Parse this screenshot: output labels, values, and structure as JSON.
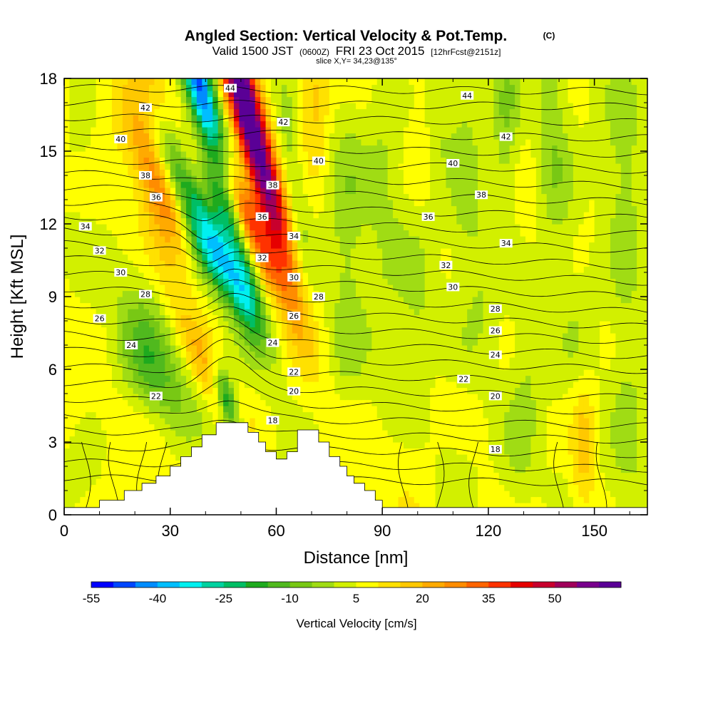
{
  "title": {
    "main": "Angled Section: Vertical Velocity & Pot.Temp.",
    "main_suffix": "(C)",
    "valid_prefix": "Valid 1500 JST",
    "valid_utc": "(0600Z)",
    "valid_date": "FRI 23 Oct 2015",
    "forecast": "[12hrFcst@2151z]",
    "slice": "slice X,Y= 34,23@135°"
  },
  "chart_data": {
    "type": "heatmap",
    "xlabel": "Distance [nm]",
    "ylabel": "Height [Kft MSL]",
    "xlim": [
      0,
      165
    ],
    "ylim": [
      0,
      18
    ],
    "x_ticks": [
      "0",
      "30",
      "60",
      "90",
      "120",
      "150"
    ],
    "x_tick_values": [
      0,
      30,
      60,
      90,
      120,
      150
    ],
    "y_ticks": [
      "0",
      "3",
      "6",
      "9",
      "12",
      "15",
      "18"
    ],
    "y_tick_values": [
      0,
      3,
      6,
      9,
      12,
      15,
      18
    ],
    "colorbar": {
      "title": "Vertical Velocity [cm/s]",
      "labels": [
        "-55",
        "-40",
        "-25",
        "-10",
        "5",
        "20",
        "35",
        "50"
      ],
      "min": -55,
      "max": 65,
      "step": 5,
      "colors": [
        "#0000ff",
        "#0046ff",
        "#008cff",
        "#00beff",
        "#00f0f0",
        "#00d2a0",
        "#00be64",
        "#1eaa1e",
        "#50b91e",
        "#78c814",
        "#a0dc14",
        "#d2f000",
        "#ffff00",
        "#ffe100",
        "#ffc800",
        "#ffaa00",
        "#ff8c00",
        "#ff6400",
        "#ff3200",
        "#e60000",
        "#c8002d",
        "#a0005a",
        "#78008c",
        "#5a0096"
      ]
    },
    "terrain_profile": [
      [
        0,
        0.3
      ],
      [
        10,
        0.3
      ],
      [
        10,
        0.6
      ],
      [
        17,
        0.6
      ],
      [
        17,
        1.0
      ],
      [
        22,
        1.0
      ],
      [
        22,
        1.3
      ],
      [
        26,
        1.3
      ],
      [
        26,
        1.6
      ],
      [
        30,
        1.6
      ],
      [
        30,
        2.0
      ],
      [
        33,
        2.0
      ],
      [
        33,
        2.4
      ],
      [
        36,
        2.4
      ],
      [
        36,
        2.8
      ],
      [
        39,
        2.8
      ],
      [
        39,
        3.3
      ],
      [
        43,
        3.3
      ],
      [
        43,
        3.8
      ],
      [
        52,
        3.8
      ],
      [
        52,
        3.4
      ],
      [
        55,
        3.4
      ],
      [
        55,
        3.0
      ],
      [
        57,
        3.0
      ],
      [
        57,
        2.6
      ],
      [
        60,
        2.6
      ],
      [
        60,
        2.3
      ],
      [
        63,
        2.3
      ],
      [
        63,
        2.6
      ],
      [
        66,
        2.6
      ],
      [
        66,
        3.5
      ],
      [
        72,
        3.5
      ],
      [
        72,
        3.0
      ],
      [
        75,
        3.0
      ],
      [
        75,
        2.4
      ],
      [
        78,
        2.4
      ],
      [
        78,
        2.0
      ],
      [
        80,
        2.0
      ],
      [
        80,
        1.6
      ],
      [
        82,
        1.6
      ],
      [
        82,
        1.3
      ],
      [
        85,
        1.3
      ],
      [
        85,
        1.0
      ],
      [
        88,
        1.0
      ],
      [
        88,
        0.6
      ],
      [
        90,
        0.6
      ],
      [
        90,
        0.3
      ],
      [
        165,
        0.3
      ]
    ],
    "isentropes": [
      {
        "theta": 18,
        "label_x": 59,
        "label_y": 3.9
      },
      {
        "theta": 18,
        "label_x": 122,
        "label_y": 2.7
      },
      {
        "theta": 20,
        "label_x": 65,
        "label_y": 5.1
      },
      {
        "theta": 20,
        "label_x": 122,
        "label_y": 4.9
      },
      {
        "theta": 22,
        "label_x": 26,
        "label_y": 4.9
      },
      {
        "theta": 22,
        "label_x": 65,
        "label_y": 5.9
      },
      {
        "theta": 22,
        "label_x": 113,
        "label_y": 5.6
      },
      {
        "theta": 24,
        "label_x": 19,
        "label_y": 7.0
      },
      {
        "theta": 24,
        "label_x": 59,
        "label_y": 7.1
      },
      {
        "theta": 24,
        "label_x": 122,
        "label_y": 6.6
      },
      {
        "theta": 26,
        "label_x": 10,
        "label_y": 8.1
      },
      {
        "theta": 26,
        "label_x": 65,
        "label_y": 8.2
      },
      {
        "theta": 26,
        "label_x": 122,
        "label_y": 7.6
      },
      {
        "theta": 28,
        "label_x": 23,
        "label_y": 9.1
      },
      {
        "theta": 28,
        "label_x": 72,
        "label_y": 9.0
      },
      {
        "theta": 28,
        "label_x": 122,
        "label_y": 8.5
      },
      {
        "theta": 30,
        "label_x": 16,
        "label_y": 10.0
      },
      {
        "theta": 30,
        "label_x": 65,
        "label_y": 9.8
      },
      {
        "theta": 30,
        "label_x": 110,
        "label_y": 9.4
      },
      {
        "theta": 32,
        "label_x": 10,
        "label_y": 10.9
      },
      {
        "theta": 32,
        "label_x": 56,
        "label_y": 10.6
      },
      {
        "theta": 32,
        "label_x": 108,
        "label_y": 10.3
      },
      {
        "theta": 34,
        "label_x": 6,
        "label_y": 11.9
      },
      {
        "theta": 34,
        "label_x": 65,
        "label_y": 11.5
      },
      {
        "theta": 34,
        "label_x": 125,
        "label_y": 11.2
      },
      {
        "theta": 36,
        "label_x": 26,
        "label_y": 13.1
      },
      {
        "theta": 36,
        "label_x": 56,
        "label_y": 12.3
      },
      {
        "theta": 36,
        "label_x": 103,
        "label_y": 12.3
      },
      {
        "theta": 38,
        "label_x": 23,
        "label_y": 14.0
      },
      {
        "theta": 38,
        "label_x": 59,
        "label_y": 13.6
      },
      {
        "theta": 38,
        "label_x": 118,
        "label_y": 13.2
      },
      {
        "theta": 40,
        "label_x": 16,
        "label_y": 15.5
      },
      {
        "theta": 40,
        "label_x": 72,
        "label_y": 14.6
      },
      {
        "theta": 40,
        "label_x": 110,
        "label_y": 14.5
      },
      {
        "theta": 42,
        "label_x": 23,
        "label_y": 16.8
      },
      {
        "theta": 42,
        "label_x": 62,
        "label_y": 16.2
      },
      {
        "theta": 42,
        "label_x": 125,
        "label_y": 15.6
      },
      {
        "theta": 44,
        "label_x": 47,
        "label_y": 17.6
      },
      {
        "theta": 44,
        "label_x": 114,
        "label_y": 17.3
      }
    ],
    "velocity_features": [
      {
        "x": 40,
        "z": 16.5,
        "sx": 3.0,
        "sz": 4.5,
        "tilt": 0.28,
        "w": -55
      },
      {
        "x": 38,
        "z": 12.5,
        "sx": 3.5,
        "sz": 3.0,
        "tilt": 0.55,
        "w": -30
      },
      {
        "x": 42,
        "z": 10.5,
        "sx": 5.0,
        "sz": 1.5,
        "tilt": 0.6,
        "w": -20
      },
      {
        "x": 52,
        "z": 16.5,
        "sx": 3.2,
        "sz": 4.5,
        "tilt": 0.3,
        "w": 65
      },
      {
        "x": 49,
        "z": 13.0,
        "sx": 3.0,
        "sz": 2.5,
        "tilt": 0.5,
        "w": 35
      },
      {
        "x": 24,
        "z": 15.0,
        "sx": 4.0,
        "sz": 4.0,
        "tilt": 0.2,
        "w": 16
      },
      {
        "x": 30,
        "z": 12.5,
        "sx": 3.0,
        "sz": 2.0,
        "tilt": 0.4,
        "w": 12
      },
      {
        "x": 41,
        "z": 6.0,
        "sx": 4.0,
        "sz": 1.8,
        "tilt": 0.5,
        "w": 22
      },
      {
        "x": 46,
        "z": 4.8,
        "sx": 2.0,
        "sz": 1.0,
        "tilt": 0.3,
        "w": -35
      },
      {
        "x": 33,
        "z": 6.5,
        "sx": 10.0,
        "sz": 1.8,
        "tilt": 0.4,
        "w": -9
      },
      {
        "x": 26,
        "z": 5.5,
        "sx": 5.0,
        "sz": 1.5,
        "tilt": 0.4,
        "w": -10
      },
      {
        "x": 71,
        "z": 17.0,
        "sx": 3.0,
        "sz": 2.0,
        "tilt": 0,
        "w": 12
      },
      {
        "x": 66,
        "z": 12.5,
        "sx": 2.5,
        "sz": 4.0,
        "tilt": 0.15,
        "w": -10
      },
      {
        "x": 80,
        "z": 12.0,
        "sx": 4.0,
        "sz": 4.5,
        "tilt": 0,
        "w": -8
      },
      {
        "x": 91,
        "z": 14.5,
        "sx": 4.0,
        "sz": 4.5,
        "tilt": 0,
        "w": -7
      },
      {
        "x": 113,
        "z": 15.5,
        "sx": 3.5,
        "sz": 3.5,
        "tilt": 0,
        "w": -10
      },
      {
        "x": 125,
        "z": 16.0,
        "sx": 3.0,
        "sz": 3.0,
        "tilt": 0,
        "w": -12
      },
      {
        "x": 137,
        "z": 15.5,
        "sx": 3.0,
        "sz": 3.5,
        "tilt": 0,
        "w": -9
      },
      {
        "x": 158,
        "z": 14.0,
        "sx": 4.0,
        "sz": 4.5,
        "tilt": 0,
        "w": -8
      },
      {
        "x": 141,
        "z": 12.5,
        "sx": 3.0,
        "sz": 3.5,
        "tilt": 0,
        "w": -6
      },
      {
        "x": 118,
        "z": 10.5,
        "sx": 4.0,
        "sz": 3.0,
        "tilt": 0,
        "w": -6
      },
      {
        "x": 100,
        "z": 8.0,
        "sx": 3.5,
        "sz": 3.0,
        "tilt": 0,
        "w": -6
      },
      {
        "x": 131,
        "z": 7.0,
        "sx": 3.0,
        "sz": 2.5,
        "tilt": 0,
        "w": -6
      },
      {
        "x": 147,
        "z": 7.5,
        "sx": 4.0,
        "sz": 3.0,
        "tilt": 0,
        "w": -7
      },
      {
        "x": 160,
        "z": 5.0,
        "sx": 4.0,
        "sz": 4.0,
        "tilt": 0,
        "w": -8
      },
      {
        "x": 147,
        "z": 3.0,
        "sx": 2.5,
        "sz": 2.0,
        "tilt": 0,
        "w": 14
      },
      {
        "x": 128,
        "z": 2.0,
        "sx": 4.0,
        "sz": 2.0,
        "tilt": 0,
        "w": -6
      },
      {
        "x": 110,
        "z": 1.5,
        "sx": 5.0,
        "sz": 1.5,
        "tilt": 0,
        "w": -7
      },
      {
        "x": 90,
        "z": 5.5,
        "sx": 4.0,
        "sz": 2.0,
        "tilt": 0,
        "w": -5
      },
      {
        "x": 80,
        "z": 7.0,
        "sx": 4.0,
        "sz": 2.0,
        "tilt": 0,
        "w": -6
      },
      {
        "x": 5,
        "z": 1.5,
        "sx": 6.0,
        "sz": 1.5,
        "tilt": 0,
        "w": -6
      },
      {
        "x": 22,
        "z": 8.0,
        "sx": 5.0,
        "sz": 2.0,
        "tilt": 0,
        "w": -6
      },
      {
        "x": 52,
        "z": 9.0,
        "sx": 3.0,
        "sz": 1.5,
        "tilt": 0,
        "w": -8
      },
      {
        "x": 5,
        "z": 16.5,
        "sx": 3.0,
        "sz": 2.0,
        "tilt": 0,
        "w": -5
      },
      {
        "x": 106,
        "z": 17.0,
        "sx": 2.5,
        "sz": 2.5,
        "tilt": 0,
        "w": -8
      }
    ]
  }
}
